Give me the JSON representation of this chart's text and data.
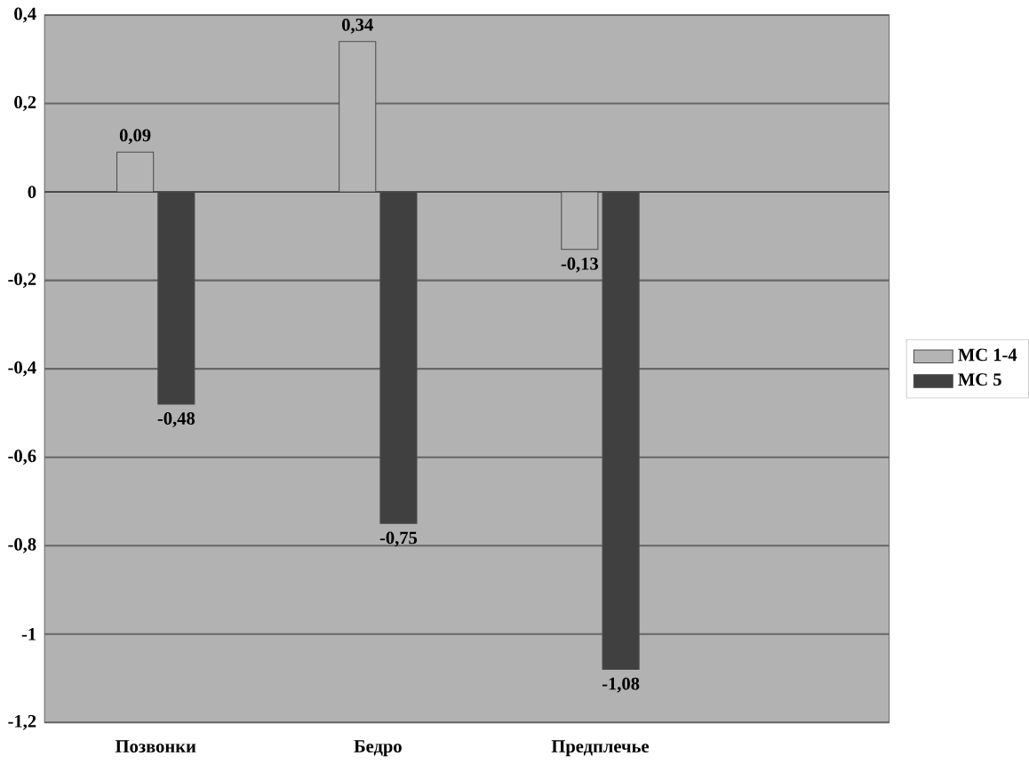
{
  "chart_data": {
    "type": "bar",
    "categories": [
      "Позвонки",
      "Бедро",
      "Предплечье"
    ],
    "series": [
      {
        "name": "МС 1-4",
        "color": "#b4b4b4",
        "values": [
          0.09,
          0.34,
          -0.13
        ],
        "value_labels": [
          "0,09",
          "0,34",
          "-0,13"
        ]
      },
      {
        "name": "МС 5",
        "color": "#404040",
        "values": [
          -0.48,
          -0.75,
          -1.08
        ],
        "value_labels": [
          "-0,48",
          "-0,75",
          "-1,08"
        ]
      }
    ],
    "ylim": [
      -1.2,
      0.4
    ],
    "yticks": [
      {
        "value": 0.4,
        "label": "0,4"
      },
      {
        "value": 0.2,
        "label": "0,2"
      },
      0,
      {
        "value": -0.2,
        "label": "-0,2"
      },
      {
        "value": -0.4,
        "label": "-0,4"
      },
      {
        "value": -0.6,
        "label": "-0,6"
      },
      {
        "value": -0.8,
        "label": "-0,8"
      },
      -1,
      {
        "value": -1.2,
        "label": "-1,2"
      }
    ],
    "grid": "y",
    "legend": "right"
  }
}
